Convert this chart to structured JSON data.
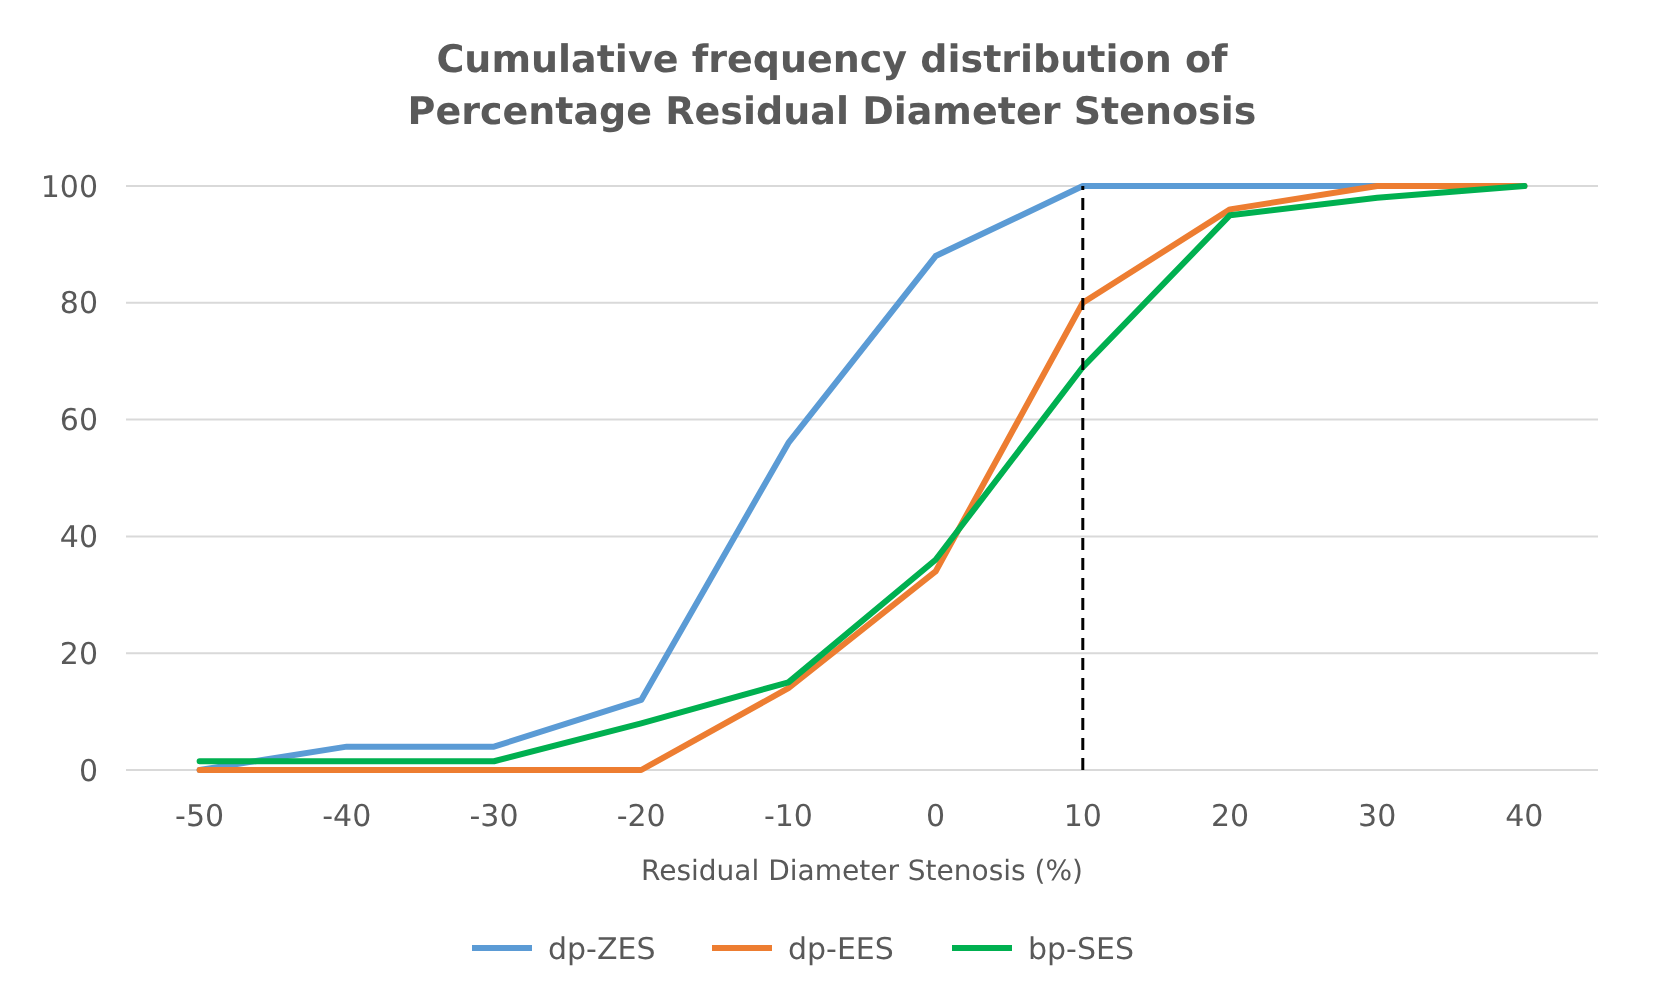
{
  "chart_data": {
    "type": "line",
    "title": "Cumulative frequency distribution of\nPercentage Residual Diameter Stenosis",
    "xlabel": "Residual Diameter Stenosis (%)",
    "x": [
      -50,
      -40,
      -30,
      -20,
      -10,
      0,
      10,
      20,
      30,
      40
    ],
    "xlim": [
      -55,
      45
    ],
    "xticks": [
      -50,
      -40,
      -30,
      -20,
      -10,
      0,
      10,
      20,
      30,
      40
    ],
    "ylim": [
      0,
      100
    ],
    "yticks": [
      0,
      20,
      40,
      60,
      80,
      100
    ],
    "grid": "y",
    "legend": "bottom",
    "line_style": "solid",
    "marker": "none",
    "series": [
      {
        "name": "dp-ZES",
        "color": "#5b9bd5",
        "values": [
          0,
          4,
          4,
          12,
          56,
          88,
          100,
          100,
          100,
          100
        ]
      },
      {
        "name": "dp-EES",
        "color": "#ed7d31",
        "values": [
          0,
          0,
          0,
          0,
          14,
          34,
          80,
          96,
          100,
          100
        ]
      },
      {
        "name": "bp-SES",
        "color": "#00b050",
        "values": [
          1.5,
          1.5,
          1.5,
          8,
          15,
          36,
          69,
          95,
          98,
          100
        ]
      }
    ],
    "ref_lines": [
      {
        "axis": "x",
        "value": 10,
        "color": "#000000",
        "line_style": "dashed"
      }
    ]
  }
}
